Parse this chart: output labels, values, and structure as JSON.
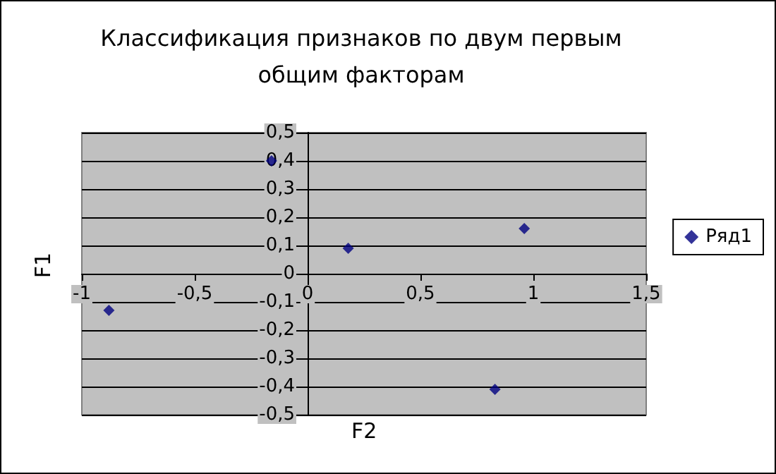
{
  "chart_data": {
    "type": "scatter",
    "title": "Классификация признаков по двум первым\nобщим факторам",
    "xlabel": "F2",
    "ylabel": "F1",
    "x": [
      -0.88,
      -0.16,
      0.18,
      0.96,
      0.83
    ],
    "series": [
      {
        "name": "Ряд1",
        "color": "#000080",
        "values": [
          -0.13,
          0.4,
          0.09,
          0.16,
          -0.41
        ]
      }
    ],
    "xlim": [
      -1,
      1.5
    ],
    "xticks": [
      {
        "value": -1,
        "label": "-1"
      },
      {
        "value": -0.5,
        "label": "-0,5"
      },
      {
        "value": 0,
        "label": "0"
      },
      {
        "value": 0.5,
        "label": "0,5"
      },
      {
        "value": 1,
        "label": "1"
      },
      {
        "value": 1.5,
        "label": "1,5"
      }
    ],
    "ylim": [
      -0.5,
      0.5
    ],
    "yticks": [
      {
        "value": -0.5,
        "label": "-0,5"
      },
      {
        "value": -0.4,
        "label": "-0,4"
      },
      {
        "value": -0.3,
        "label": "-0,3"
      },
      {
        "value": -0.2,
        "label": "-0,2"
      },
      {
        "value": -0.1,
        "label": "-0,1"
      },
      {
        "value": 0,
        "label": "0"
      },
      {
        "value": 0.1,
        "label": "0,1"
      },
      {
        "value": 0.2,
        "label": "0,2"
      },
      {
        "value": 0.3,
        "label": "0,3"
      },
      {
        "value": 0.4,
        "label": "0,4"
      },
      {
        "value": 0.5,
        "label": "0,5"
      }
    ],
    "grid": "y",
    "legend": "right",
    "marker": "diamond"
  }
}
